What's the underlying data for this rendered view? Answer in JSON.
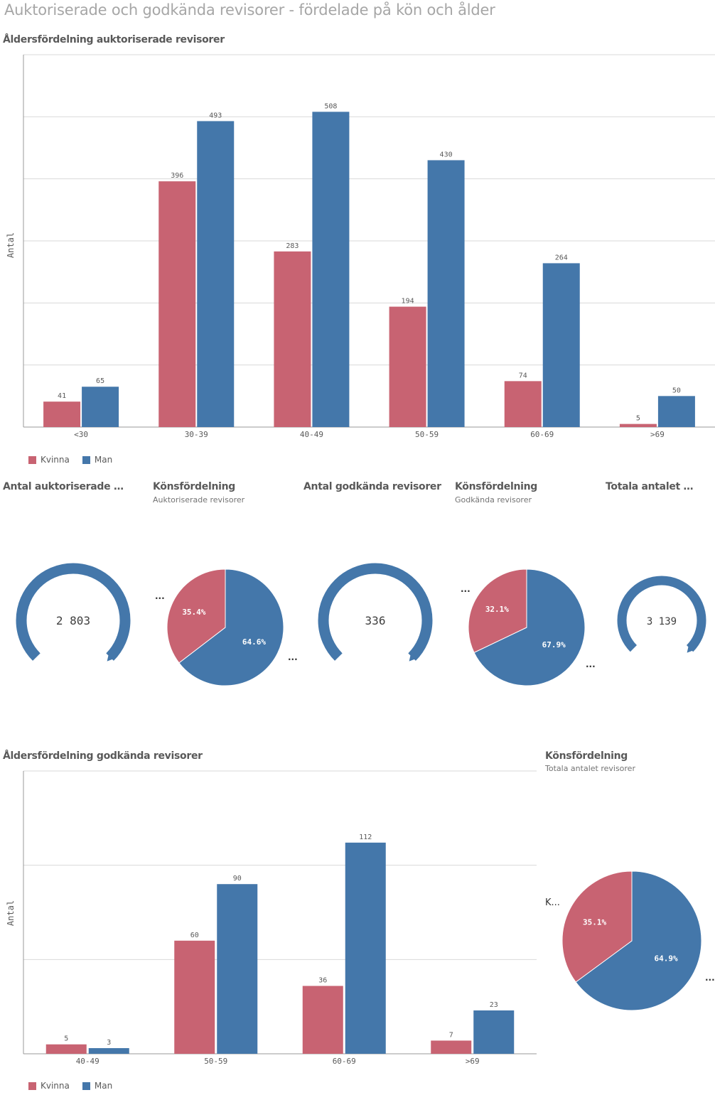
{
  "page_title": "Auktoriserade och godkända revisorer - fördelade på kön och ålder",
  "colors": {
    "kvinna": "#c86372",
    "man": "#4477aa",
    "grid": "#d9d9d9",
    "axis": "#999999"
  },
  "chart1": {
    "title": "Åldersfördelning auktoriserade revisorer",
    "ylabel": "Antal"
  },
  "chart2": {
    "title": "Åldersfördelning godkända revisorer",
    "ylabel": "Antal"
  },
  "legend": {
    "kvinna": "Kvinna",
    "man": "Man"
  },
  "kpi1": {
    "title": "Antal auktoriserade revisorer",
    "value": "2 803"
  },
  "kpi2": {
    "title": "Antal godkända revisorer",
    "value": "336"
  },
  "kpi3": {
    "title": "Totala antalet revisorer",
    "value": "3 139"
  },
  "pie1": {
    "title": "Könsfördelning",
    "subtitle": "Auktoriserade revisorer",
    "kvinna_label": "35.4%",
    "man_label": "64.6%",
    "more": "..."
  },
  "pie2": {
    "title": "Könsfördelning",
    "subtitle": "Godkända revisorer",
    "kvinna_label": "32.1%",
    "man_label": "67.9%",
    "more": "..."
  },
  "pie3": {
    "title": "Könsfördelning",
    "subtitle": "Totala antalet revisorer",
    "kvinna_label": "35.1%",
    "man_label": "64.9%",
    "more": "...",
    "legend_truncated": "K..."
  },
  "kpi1_more": "...",
  "chart_data": [
    {
      "type": "bar",
      "title": "Åldersfördelning auktoriserade revisorer",
      "xlabel": "",
      "ylabel": "Antal",
      "categories": [
        "<30",
        "30-39",
        "40-49",
        "50-59",
        "60-69",
        ">69"
      ],
      "series": [
        {
          "name": "Kvinna",
          "values": [
            41,
            396,
            283,
            194,
            74,
            5
          ]
        },
        {
          "name": "Man",
          "values": [
            65,
            493,
            508,
            430,
            264,
            50
          ]
        }
      ],
      "ylim": [
        0,
        600
      ],
      "grid": true,
      "legend": "bottom-left"
    },
    {
      "type": "bar",
      "title": "Åldersfördelning godkända revisorer",
      "xlabel": "",
      "ylabel": "Antal",
      "categories": [
        "40-49",
        "50-59",
        "60-69",
        ">69"
      ],
      "series": [
        {
          "name": "Kvinna",
          "values": [
            5,
            60,
            36,
            7
          ]
        },
        {
          "name": "Man",
          "values": [
            3,
            90,
            112,
            23
          ]
        }
      ],
      "ylim": [
        0,
        150
      ],
      "grid": true,
      "legend": "bottom-left"
    },
    {
      "type": "pie",
      "title": "Könsfördelning",
      "subtitle": "Auktoriserade revisorer",
      "labels": [
        "Kvinna",
        "Man"
      ],
      "values": [
        35.4,
        64.6
      ]
    },
    {
      "type": "pie",
      "title": "Könsfördelning",
      "subtitle": "Godkända revisorer",
      "labels": [
        "Kvinna",
        "Man"
      ],
      "values": [
        32.1,
        67.9
      ]
    },
    {
      "type": "pie",
      "title": "Könsfördelning",
      "subtitle": "Totala antalet revisorer",
      "labels": [
        "Kvinna",
        "Man"
      ],
      "values": [
        35.1,
        64.9
      ]
    }
  ]
}
